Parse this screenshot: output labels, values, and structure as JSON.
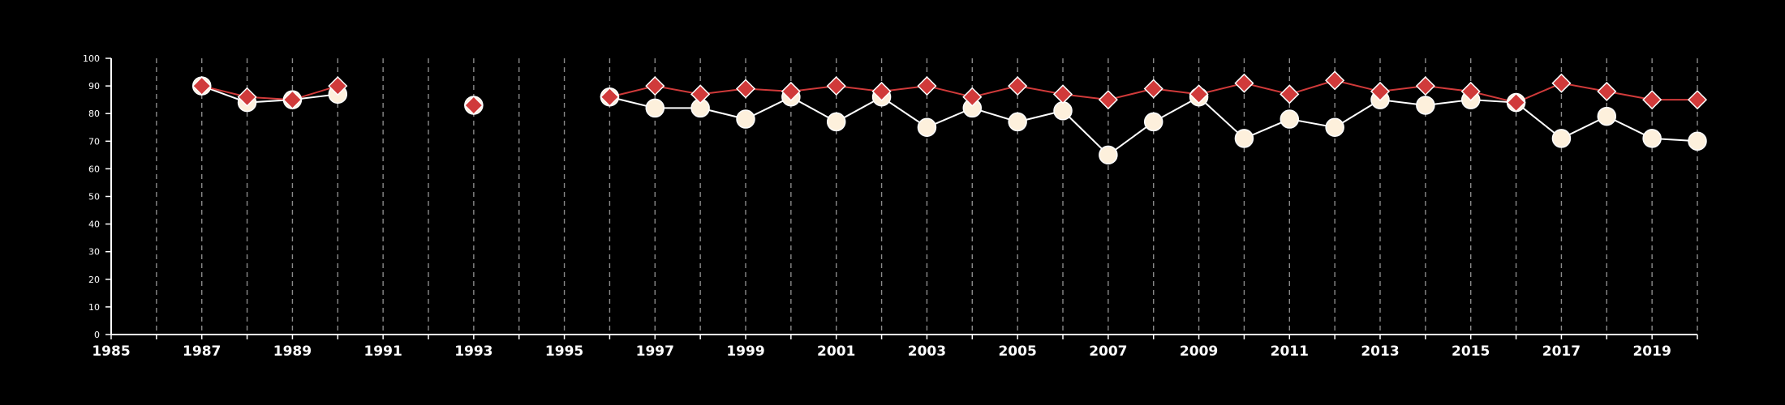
{
  "chart_data": {
    "type": "line",
    "title": "",
    "xlabel": "",
    "ylabel": "",
    "xlim": [
      1985,
      2020
    ],
    "ylim": [
      0,
      100
    ],
    "x_ticks_major": [
      "1985",
      "1987",
      "1989",
      "1991",
      "1993",
      "1995",
      "1997",
      "1999",
      "2001",
      "2003",
      "2005",
      "2007",
      "2009",
      "2011",
      "2013",
      "2015",
      "2017",
      "2019"
    ],
    "y_ticks": [
      "0",
      "10",
      "20",
      "30",
      "40",
      "50",
      "60",
      "70",
      "80",
      "90",
      "100"
    ],
    "vertical_grid": "dashed, every year",
    "legend": "none",
    "colors": {
      "background": "#000000",
      "axis": "#ffffff",
      "grid": "#8a8a8a"
    },
    "series": [
      {
        "marker": "circle",
        "color": "#fdf0dc",
        "line_color": "#ffffff",
        "x": [
          1987,
          1988,
          1989,
          1990,
          1993,
          1996,
          1997,
          1998,
          1999,
          2000,
          2001,
          2002,
          2003,
          2004,
          2005,
          2006,
          2007,
          2008,
          2009,
          2010,
          2011,
          2012,
          2013,
          2014,
          2015,
          2016,
          2017,
          2018,
          2019,
          2020
        ],
        "y": [
          90,
          84,
          85,
          87,
          83,
          86,
          82,
          82,
          78,
          86,
          77,
          86,
          75,
          82,
          77,
          81,
          65,
          77,
          86,
          71,
          78,
          75,
          85,
          83,
          85,
          84,
          71,
          79,
          71,
          70
        ]
      },
      {
        "marker": "diamond",
        "color": "#d03a3a",
        "line_color": "#d03a3a",
        "x": [
          1987,
          1988,
          1989,
          1990,
          1993,
          1996,
          1997,
          1998,
          1999,
          2000,
          2001,
          2002,
          2003,
          2004,
          2005,
          2006,
          2007,
          2008,
          2009,
          2010,
          2011,
          2012,
          2013,
          2014,
          2015,
          2016,
          2017,
          2018,
          2019,
          2020
        ],
        "y": [
          90,
          86,
          85,
          90,
          83,
          86,
          90,
          87,
          89,
          88,
          90,
          88,
          90,
          86,
          90,
          87,
          85,
          89,
          87,
          91,
          87,
          92,
          88,
          90,
          88,
          84,
          91,
          88,
          85,
          85
        ]
      }
    ]
  }
}
